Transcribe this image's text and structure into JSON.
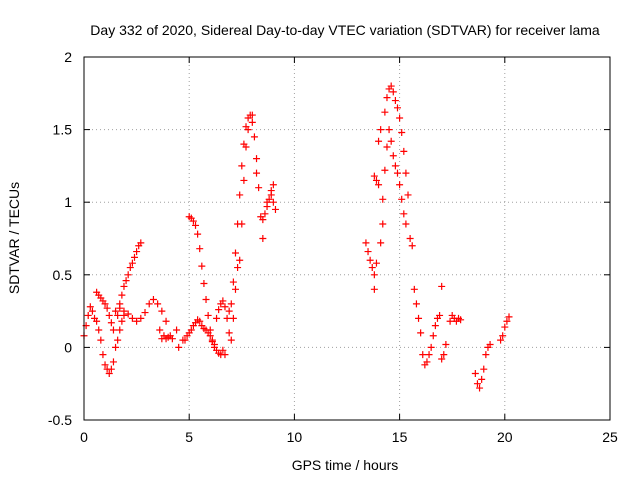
{
  "chart_data": {
    "type": "scatter",
    "title": "Day 332 of 2020, Sidereal Day-to-day VTEC variation (SDTVAR) for receiver lama",
    "xlabel": "GPS time / hours",
    "ylabel": "SDTVAR / TECUs",
    "xlim": [
      0,
      25
    ],
    "ylim": [
      -0.5,
      2
    ],
    "xticks": [
      0,
      5,
      10,
      15,
      20,
      25
    ],
    "xtick_labels": [
      "0",
      "5",
      "10",
      "15",
      "20",
      "25"
    ],
    "yticks": [
      -0.5,
      0,
      0.5,
      1,
      1.5,
      2
    ],
    "ytick_labels": [
      "-0.5",
      "0",
      "0.5",
      "1",
      "1.5",
      "2"
    ],
    "grid": true,
    "marker": "+",
    "color": "#ff0000",
    "series": [
      {
        "name": "lama",
        "points": [
          [
            0.0,
            0.08
          ],
          [
            0.1,
            0.15
          ],
          [
            0.2,
            0.22
          ],
          [
            0.3,
            0.28
          ],
          [
            0.4,
            0.25
          ],
          [
            0.5,
            0.2
          ],
          [
            0.6,
            0.18
          ],
          [
            0.7,
            0.12
          ],
          [
            0.8,
            0.05
          ],
          [
            0.9,
            -0.05
          ],
          [
            1.0,
            -0.12
          ],
          [
            1.1,
            -0.15
          ],
          [
            1.2,
            -0.18
          ],
          [
            1.3,
            -0.15
          ],
          [
            1.4,
            -0.1
          ],
          [
            1.5,
            0.0
          ],
          [
            1.6,
            0.05
          ],
          [
            1.7,
            0.12
          ],
          [
            1.8,
            0.18
          ],
          [
            1.9,
            0.22
          ],
          [
            0.6,
            0.38
          ],
          [
            0.7,
            0.36
          ],
          [
            0.8,
            0.34
          ],
          [
            0.9,
            0.32
          ],
          [
            1.0,
            0.3
          ],
          [
            1.1,
            0.27
          ],
          [
            1.2,
            0.22
          ],
          [
            1.3,
            0.17
          ],
          [
            1.4,
            0.12
          ],
          [
            1.6,
            0.22
          ],
          [
            1.7,
            0.3
          ],
          [
            1.8,
            0.36
          ],
          [
            1.9,
            0.42
          ],
          [
            2.0,
            0.46
          ],
          [
            2.1,
            0.5
          ],
          [
            2.2,
            0.55
          ],
          [
            2.3,
            0.58
          ],
          [
            2.4,
            0.62
          ],
          [
            2.5,
            0.66
          ],
          [
            2.6,
            0.7
          ],
          [
            2.7,
            0.72
          ],
          [
            1.5,
            0.25
          ],
          [
            1.7,
            0.27
          ],
          [
            1.9,
            0.25
          ],
          [
            2.1,
            0.23
          ],
          [
            2.3,
            0.2
          ],
          [
            2.5,
            0.18
          ],
          [
            2.7,
            0.2
          ],
          [
            2.9,
            0.24
          ],
          [
            3.1,
            0.3
          ],
          [
            3.3,
            0.33
          ],
          [
            3.5,
            0.3
          ],
          [
            3.7,
            0.25
          ],
          [
            3.9,
            0.18
          ],
          [
            3.6,
            0.12
          ],
          [
            3.7,
            0.06
          ],
          [
            3.8,
            0.08
          ],
          [
            3.9,
            0.06
          ],
          [
            4.0,
            0.07
          ],
          [
            4.1,
            0.08
          ],
          [
            4.2,
            0.06
          ],
          [
            4.4,
            0.12
          ],
          [
            4.5,
            0.0
          ],
          [
            4.7,
            0.05
          ],
          [
            4.8,
            0.05
          ],
          [
            4.9,
            0.08
          ],
          [
            5.0,
            0.1
          ],
          [
            5.1,
            0.12
          ],
          [
            5.2,
            0.15
          ],
          [
            5.3,
            0.17
          ],
          [
            5.4,
            0.19
          ],
          [
            5.5,
            0.18
          ],
          [
            5.6,
            0.15
          ],
          [
            5.7,
            0.13
          ],
          [
            5.8,
            0.12
          ],
          [
            5.9,
            0.1
          ],
          [
            6.0,
            0.08
          ],
          [
            6.1,
            0.05
          ],
          [
            6.2,
            0.02
          ],
          [
            5.0,
            0.9
          ],
          [
            5.1,
            0.89
          ],
          [
            5.2,
            0.87
          ],
          [
            5.3,
            0.84
          ],
          [
            5.4,
            0.78
          ],
          [
            5.5,
            0.68
          ],
          [
            5.6,
            0.56
          ],
          [
            5.7,
            0.44
          ],
          [
            5.8,
            0.33
          ],
          [
            5.9,
            0.22
          ],
          [
            6.0,
            0.12
          ],
          [
            6.1,
            0.04
          ],
          [
            6.2,
            0.0
          ],
          [
            6.3,
            -0.02
          ],
          [
            6.4,
            -0.04
          ],
          [
            6.5,
            -0.05
          ],
          [
            6.6,
            -0.02
          ],
          [
            6.7,
            -0.05
          ],
          [
            6.3,
            0.2
          ],
          [
            6.4,
            0.26
          ],
          [
            6.5,
            0.3
          ],
          [
            6.6,
            0.32
          ],
          [
            6.7,
            0.28
          ],
          [
            6.8,
            0.2
          ],
          [
            6.9,
            0.25
          ],
          [
            7.0,
            0.3
          ],
          [
            7.1,
            0.45
          ],
          [
            7.2,
            0.65
          ],
          [
            7.3,
            0.85
          ],
          [
            7.4,
            1.05
          ],
          [
            7.5,
            1.25
          ],
          [
            7.6,
            1.4
          ],
          [
            7.7,
            1.52
          ],
          [
            7.8,
            1.58
          ],
          [
            7.9,
            1.6
          ],
          [
            8.0,
            1.55
          ],
          [
            8.1,
            1.45
          ],
          [
            8.2,
            1.3
          ],
          [
            8.3,
            1.1
          ],
          [
            8.4,
            0.9
          ],
          [
            8.5,
            0.75
          ],
          [
            6.9,
            0.1
          ],
          [
            7.0,
            0.05
          ],
          [
            7.1,
            0.2
          ],
          [
            7.2,
            0.4
          ],
          [
            7.3,
            0.55
          ],
          [
            7.4,
            0.6
          ],
          [
            7.5,
            0.85
          ],
          [
            7.6,
            1.15
          ],
          [
            7.7,
            1.38
          ],
          [
            7.8,
            1.5
          ],
          [
            8.0,
            1.6
          ],
          [
            8.2,
            1.2
          ],
          [
            8.5,
            0.88
          ],
          [
            8.6,
            0.92
          ],
          [
            8.7,
            0.97
          ],
          [
            8.8,
            1.02
          ],
          [
            8.9,
            1.08
          ],
          [
            9.0,
            1.12
          ],
          [
            9.0,
            1.0
          ],
          [
            9.1,
            0.95
          ],
          [
            8.7,
            1.0
          ],
          [
            8.9,
            1.05
          ],
          [
            13.4,
            0.72
          ],
          [
            13.5,
            0.66
          ],
          [
            13.6,
            0.6
          ],
          [
            13.7,
            0.55
          ],
          [
            13.8,
            0.5
          ],
          [
            13.8,
            0.4
          ],
          [
            13.9,
            0.58
          ],
          [
            13.8,
            1.18
          ],
          [
            13.9,
            1.15
          ],
          [
            14.0,
            1.12
          ],
          [
            14.0,
            1.42
          ],
          [
            14.1,
            1.5
          ],
          [
            14.1,
            0.72
          ],
          [
            14.2,
            0.85
          ],
          [
            14.2,
            1.02
          ],
          [
            14.3,
            1.22
          ],
          [
            14.4,
            1.38
          ],
          [
            14.5,
            1.5
          ],
          [
            14.6,
            1.42
          ],
          [
            14.7,
            1.32
          ],
          [
            14.8,
            1.25
          ],
          [
            14.9,
            1.2
          ],
          [
            15.0,
            1.12
          ],
          [
            15.1,
            1.02
          ],
          [
            15.2,
            0.92
          ],
          [
            15.3,
            0.85
          ],
          [
            14.3,
            1.62
          ],
          [
            14.4,
            1.72
          ],
          [
            14.5,
            1.78
          ],
          [
            14.6,
            1.8
          ],
          [
            14.7,
            1.76
          ],
          [
            14.8,
            1.7
          ],
          [
            14.9,
            1.65
          ],
          [
            15.0,
            1.58
          ],
          [
            15.1,
            1.48
          ],
          [
            15.2,
            1.35
          ],
          [
            15.3,
            1.2
          ],
          [
            15.4,
            1.05
          ],
          [
            15.5,
            0.75
          ],
          [
            15.6,
            0.7
          ],
          [
            15.7,
            0.4
          ],
          [
            15.8,
            0.3
          ],
          [
            15.9,
            0.2
          ],
          [
            16.0,
            0.1
          ],
          [
            16.1,
            -0.05
          ],
          [
            16.2,
            -0.12
          ],
          [
            16.3,
            -0.1
          ],
          [
            16.4,
            -0.05
          ],
          [
            16.5,
            0.0
          ],
          [
            16.6,
            0.08
          ],
          [
            16.7,
            0.15
          ],
          [
            16.8,
            0.2
          ],
          [
            16.9,
            0.22
          ],
          [
            17.0,
            -0.08
          ],
          [
            17.1,
            -0.05
          ],
          [
            17.2,
            0.02
          ],
          [
            17.0,
            0.42
          ],
          [
            17.4,
            0.18
          ],
          [
            17.5,
            0.22
          ],
          [
            17.6,
            0.2
          ],
          [
            17.7,
            0.18
          ],
          [
            17.8,
            0.2
          ],
          [
            17.9,
            0.19
          ],
          [
            18.6,
            -0.18
          ],
          [
            18.7,
            -0.25
          ],
          [
            18.8,
            -0.28
          ],
          [
            18.9,
            -0.22
          ],
          [
            19.0,
            -0.15
          ],
          [
            19.1,
            -0.05
          ],
          [
            19.2,
            0.0
          ],
          [
            19.3,
            0.02
          ],
          [
            19.8,
            0.05
          ],
          [
            19.9,
            0.08
          ],
          [
            20.0,
            0.14
          ],
          [
            20.1,
            0.18
          ],
          [
            20.2,
            0.21
          ]
        ]
      }
    ]
  }
}
